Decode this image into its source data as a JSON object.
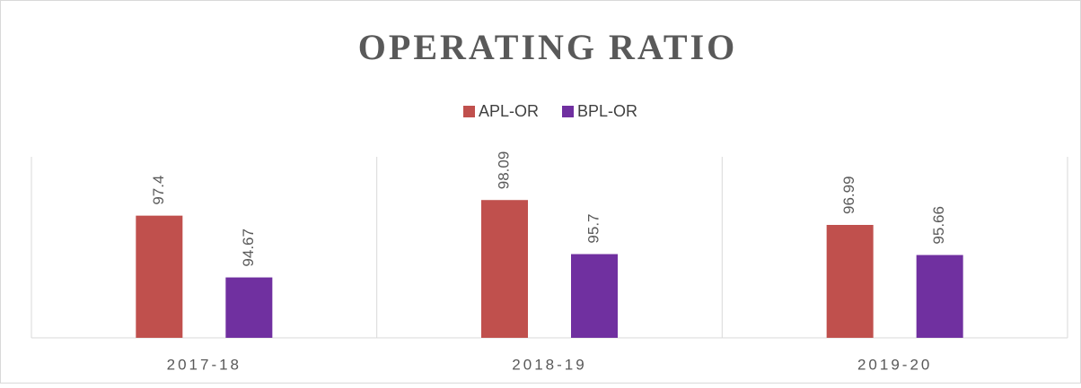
{
  "chart_data": {
    "type": "bar",
    "title": "OPERATING RATIO",
    "categories": [
      "2017-18",
      "2018-19",
      "2019-20"
    ],
    "series": [
      {
        "name": "APL-OR",
        "color": "#c0504d",
        "values": [
          97.4,
          98.09,
          96.99
        ]
      },
      {
        "name": "BPL-OR",
        "color": "#7030a0",
        "values": [
          94.67,
          95.7,
          95.66
        ]
      }
    ],
    "ylim": [
      92,
      100
    ],
    "legend": "top"
  }
}
